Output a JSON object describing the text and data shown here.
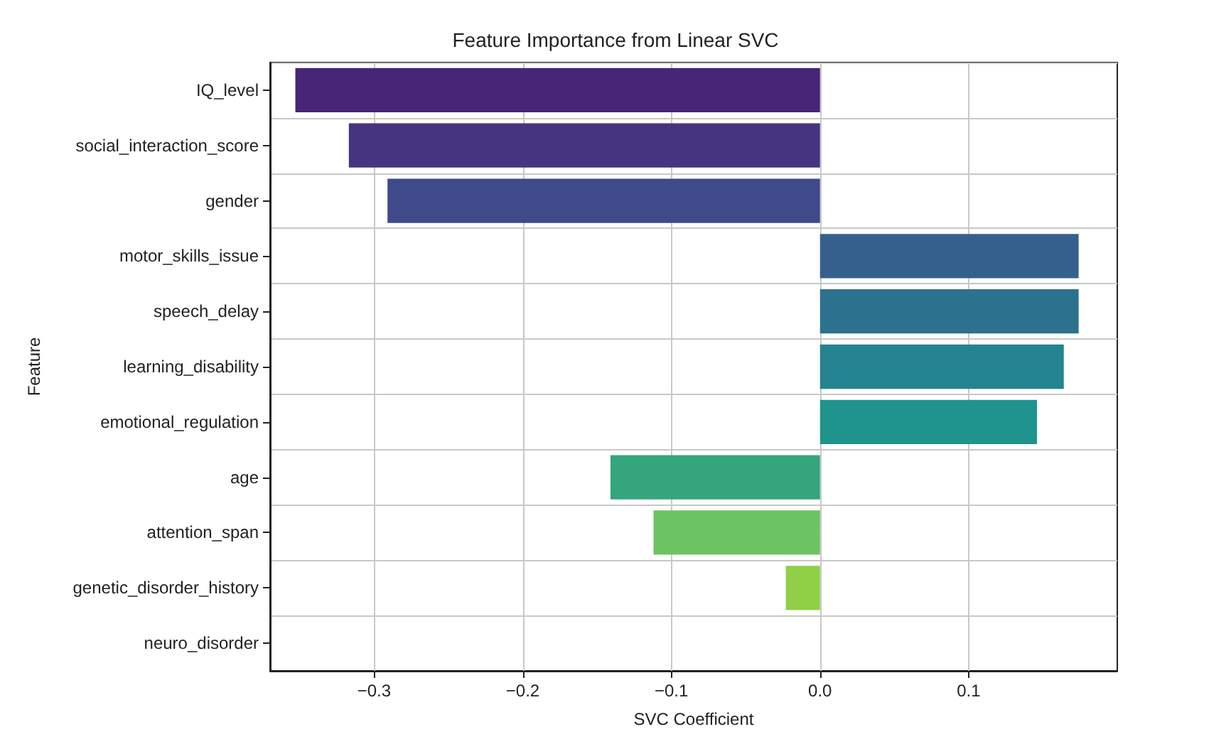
{
  "chart_data": {
    "type": "bar",
    "orientation": "horizontal",
    "title": "Feature Importance from Linear SVC",
    "xlabel": "SVC Coefficient",
    "ylabel": "Feature",
    "categories": [
      "IQ_level",
      "social_interaction_score",
      "gender",
      "motor_skills_issue",
      "speech_delay",
      "learning_disability",
      "emotional_regulation",
      "age",
      "attention_span",
      "genetic_disorder_history",
      "neuro_disorder"
    ],
    "values": [
      -0.353,
      -0.317,
      -0.291,
      0.174,
      0.174,
      0.164,
      0.146,
      -0.141,
      -0.112,
      -0.023,
      0
    ],
    "colors": [
      "#482576",
      "#463480",
      "#3e4a89",
      "#35608d",
      "#2c718e",
      "#23838e",
      "#1f948c",
      "#35a57b",
      "#6cc364",
      "#8fd046",
      "#b5de2b"
    ],
    "xlim": [
      -0.37,
      0.2
    ],
    "xticks": [
      {
        "value": -0.3,
        "label": "−0.3"
      },
      {
        "value": -0.2,
        "label": "−0.2"
      },
      {
        "value": -0.1,
        "label": "−0.1"
      },
      {
        "value": 0,
        "label": "0.0"
      },
      0.1
    ],
    "grid": true
  }
}
